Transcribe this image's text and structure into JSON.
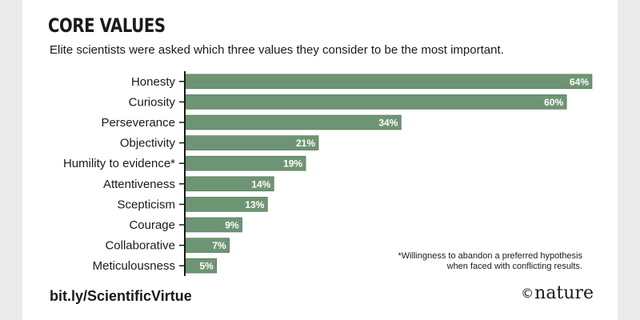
{
  "header": {
    "title": "CORE VALUES",
    "subtitle": "Elite scientists were asked which three values they consider to be the most important."
  },
  "chart_data": {
    "type": "bar",
    "orientation": "horizontal",
    "categories": [
      "Honesty",
      "Curiosity",
      "Perseverance",
      "Objectivity",
      "Humility to evidence*",
      "Attentiveness",
      "Scepticism",
      "Courage",
      "Collaborative",
      "Meticulousness"
    ],
    "values": [
      64,
      60,
      34,
      21,
      19,
      14,
      13,
      9,
      7,
      5
    ],
    "value_labels": [
      "64%",
      "60%",
      "34%",
      "21%",
      "19%",
      "14%",
      "13%",
      "9%",
      "7%",
      "5%"
    ],
    "unit": "%",
    "xlim": [
      0,
      64
    ],
    "bar_color": "#6e9573",
    "grid": false,
    "title": "CORE VALUES"
  },
  "footnote": {
    "line1": "*Willingness to abandon a preferred hypothesis",
    "line2": "when faced with conflicting results."
  },
  "footer": {
    "source": "bit.ly/ScientificVirtue",
    "copyright_symbol": "©",
    "brand": "nature"
  }
}
